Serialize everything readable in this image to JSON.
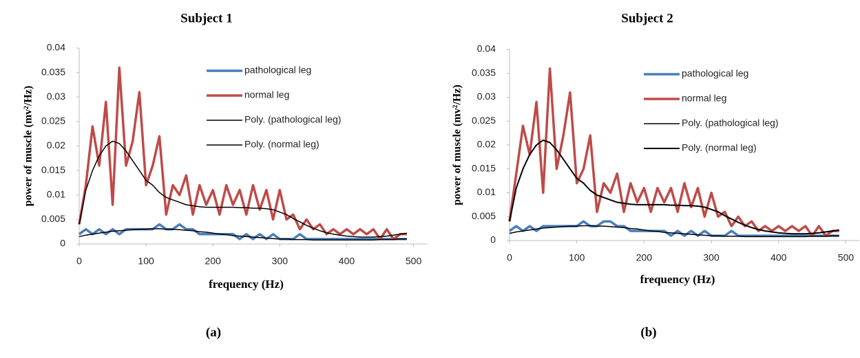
{
  "chart_data": [
    {
      "type": "line",
      "title": "Subject 1",
      "caption": "(a)",
      "xlabel": "frequency (Hz)",
      "ylabel": "power of muscle (mv²/Hz)",
      "xlim": [
        0,
        520
      ],
      "xticks": [
        0,
        100,
        200,
        300,
        400,
        500
      ],
      "ylim": [
        0,
        0.04
      ],
      "yticks": [
        0,
        0.005,
        0.01,
        0.015,
        0.02,
        0.025,
        0.03,
        0.035,
        0.04
      ],
      "x": [
        0,
        10,
        20,
        30,
        40,
        50,
        60,
        70,
        80,
        90,
        100,
        110,
        120,
        130,
        140,
        150,
        160,
        170,
        180,
        190,
        200,
        210,
        220,
        230,
        240,
        250,
        260,
        270,
        280,
        290,
        300,
        310,
        320,
        330,
        340,
        350,
        360,
        370,
        380,
        390,
        400,
        410,
        420,
        430,
        440,
        450,
        460,
        470,
        480,
        490
      ],
      "series": [
        {
          "name": "pathological leg",
          "color": "#4a7ebb",
          "width": 3.5,
          "values": [
            0.002,
            0.003,
            0.002,
            0.003,
            0.002,
            0.003,
            0.002,
            0.003,
            0.003,
            0.003,
            0.003,
            0.003,
            0.004,
            0.003,
            0.003,
            0.004,
            0.003,
            0.003,
            0.002,
            0.002,
            0.002,
            0.002,
            0.002,
            0.002,
            0.001,
            0.002,
            0.001,
            0.002,
            0.001,
            0.002,
            0.001,
            0.001,
            0.001,
            0.002,
            0.001,
            0.001,
            0.001,
            0.001,
            0.001,
            0.001,
            0.001,
            0.001,
            0.001,
            0.001,
            0.001,
            0.001,
            0.001,
            0.001,
            0.001,
            0.001
          ]
        },
        {
          "name": "normal leg",
          "color": "#be4b48",
          "width": 3.5,
          "values": [
            0.004,
            0.012,
            0.024,
            0.016,
            0.029,
            0.008,
            0.036,
            0.016,
            0.021,
            0.031,
            0.012,
            0.016,
            0.022,
            0.006,
            0.012,
            0.01,
            0.014,
            0.006,
            0.012,
            0.008,
            0.011,
            0.006,
            0.012,
            0.008,
            0.011,
            0.006,
            0.012,
            0.007,
            0.011,
            0.005,
            0.011,
            0.005,
            0.006,
            0.003,
            0.005,
            0.003,
            0.004,
            0.002,
            0.003,
            0.002,
            0.003,
            0.002,
            0.003,
            0.002,
            0.003,
            0.001,
            0.003,
            0.001,
            0.002,
            0.002
          ]
        },
        {
          "name": "Poly. (pathological leg)",
          "color": "#000000",
          "width": 1.5,
          "values": [
            0.0015,
            0.0018,
            0.002,
            0.0022,
            0.0024,
            0.0026,
            0.0027,
            0.0028,
            0.0029,
            0.003,
            0.003,
            0.0031,
            0.0031,
            0.003,
            0.003,
            0.0029,
            0.0028,
            0.0027,
            0.0025,
            0.0024,
            0.0022,
            0.002,
            0.0019,
            0.0017,
            0.0016,
            0.0015,
            0.0014,
            0.0013,
            0.0012,
            0.0011,
            0.001,
            0.001,
            0.0009,
            0.0009,
            0.0009,
            0.0008,
            0.0008,
            0.0008,
            0.0008,
            0.0008,
            0.0008,
            0.0008,
            0.0008,
            0.0008,
            0.0008,
            0.0009,
            0.0009,
            0.0009,
            0.001,
            0.001
          ]
        },
        {
          "name": "Poly. (normal leg)",
          "color": "#000000",
          "width": 1.5,
          "values": [
            0.004,
            0.011,
            0.015,
            0.018,
            0.02,
            0.021,
            0.0205,
            0.019,
            0.017,
            0.015,
            0.013,
            0.012,
            0.0105,
            0.0095,
            0.009,
            0.0085,
            0.008,
            0.0078,
            0.0076,
            0.0075,
            0.0075,
            0.0075,
            0.0075,
            0.0075,
            0.0074,
            0.0074,
            0.0073,
            0.0073,
            0.0072,
            0.007,
            0.0065,
            0.006,
            0.0052,
            0.0045,
            0.0038,
            0.0032,
            0.0027,
            0.0023,
            0.002,
            0.0018,
            0.0016,
            0.0015,
            0.0014,
            0.0014,
            0.0014,
            0.0015,
            0.0016,
            0.0018,
            0.002,
            0.0022
          ]
        }
      ]
    },
    {
      "type": "line",
      "title": "Subject 2",
      "caption": "(b)",
      "xlabel": "frequency (Hz)",
      "ylabel": "power of muscle (mv²/Hz)",
      "xlim": [
        0,
        520
      ],
      "xticks": [
        0,
        100,
        200,
        300,
        400,
        500
      ],
      "ylim": [
        0,
        0.04
      ],
      "yticks": [
        0,
        0.005,
        0.01,
        0.015,
        0.02,
        0.025,
        0.03,
        0.035,
        0.04
      ],
      "x": [
        0,
        10,
        20,
        30,
        40,
        50,
        60,
        70,
        80,
        90,
        100,
        110,
        120,
        130,
        140,
        150,
        160,
        170,
        180,
        190,
        200,
        210,
        220,
        230,
        240,
        250,
        260,
        270,
        280,
        290,
        300,
        310,
        320,
        330,
        340,
        350,
        360,
        370,
        380,
        390,
        400,
        410,
        420,
        430,
        440,
        450,
        460,
        470,
        480,
        490
      ],
      "series": [
        {
          "name": "pathological leg",
          "color": "#4a7ebb",
          "width": 3.5,
          "values": [
            0.002,
            0.003,
            0.002,
            0.003,
            0.002,
            0.003,
            0.003,
            0.003,
            0.003,
            0.003,
            0.003,
            0.004,
            0.003,
            0.003,
            0.004,
            0.004,
            0.003,
            0.003,
            0.002,
            0.002,
            0.002,
            0.002,
            0.002,
            0.002,
            0.001,
            0.002,
            0.001,
            0.002,
            0.001,
            0.002,
            0.001,
            0.001,
            0.001,
            0.002,
            0.001,
            0.001,
            0.001,
            0.001,
            0.001,
            0.001,
            0.001,
            0.001,
            0.001,
            0.001,
            0.001,
            0.001,
            0.001,
            0.001,
            0.001,
            0.001
          ]
        },
        {
          "name": "normal leg",
          "color": "#be4b48",
          "width": 3.5,
          "values": [
            0.004,
            0.014,
            0.024,
            0.018,
            0.029,
            0.01,
            0.036,
            0.015,
            0.022,
            0.031,
            0.012,
            0.015,
            0.022,
            0.006,
            0.012,
            0.01,
            0.014,
            0.006,
            0.012,
            0.008,
            0.011,
            0.006,
            0.011,
            0.008,
            0.011,
            0.006,
            0.012,
            0.007,
            0.011,
            0.005,
            0.01,
            0.005,
            0.006,
            0.003,
            0.005,
            0.003,
            0.004,
            0.002,
            0.003,
            0.002,
            0.003,
            0.002,
            0.003,
            0.002,
            0.003,
            0.001,
            0.003,
            0.001,
            0.002,
            0.002
          ]
        },
        {
          "name": "Poly. (pathological leg)",
          "color": "#000000",
          "width": 1.5,
          "values": [
            0.0015,
            0.0018,
            0.002,
            0.0022,
            0.0024,
            0.0026,
            0.0027,
            0.0028,
            0.0029,
            0.003,
            0.003,
            0.0031,
            0.0031,
            0.003,
            0.003,
            0.0029,
            0.0028,
            0.0027,
            0.0025,
            0.0024,
            0.0022,
            0.002,
            0.0019,
            0.0017,
            0.0016,
            0.0015,
            0.0014,
            0.0013,
            0.0012,
            0.0011,
            0.001,
            0.001,
            0.0009,
            0.0009,
            0.0009,
            0.0008,
            0.0008,
            0.0008,
            0.0008,
            0.0008,
            0.0008,
            0.0008,
            0.0008,
            0.0008,
            0.0008,
            0.0009,
            0.0009,
            0.0009,
            0.001,
            0.001
          ]
        },
        {
          "name": "Poly. (normal leg)",
          "color": "#000000",
          "width": 2,
          "values": [
            0.004,
            0.011,
            0.015,
            0.018,
            0.02,
            0.021,
            0.0205,
            0.019,
            0.017,
            0.015,
            0.013,
            0.012,
            0.0105,
            0.0095,
            0.009,
            0.0085,
            0.008,
            0.0078,
            0.0076,
            0.0075,
            0.0075,
            0.0075,
            0.0075,
            0.0075,
            0.0074,
            0.0074,
            0.0073,
            0.0073,
            0.0072,
            0.007,
            0.0065,
            0.006,
            0.0052,
            0.0045,
            0.0038,
            0.0032,
            0.0027,
            0.0023,
            0.002,
            0.0018,
            0.0016,
            0.0015,
            0.0014,
            0.0014,
            0.0014,
            0.0015,
            0.0016,
            0.0018,
            0.002,
            0.0022
          ]
        }
      ]
    }
  ]
}
